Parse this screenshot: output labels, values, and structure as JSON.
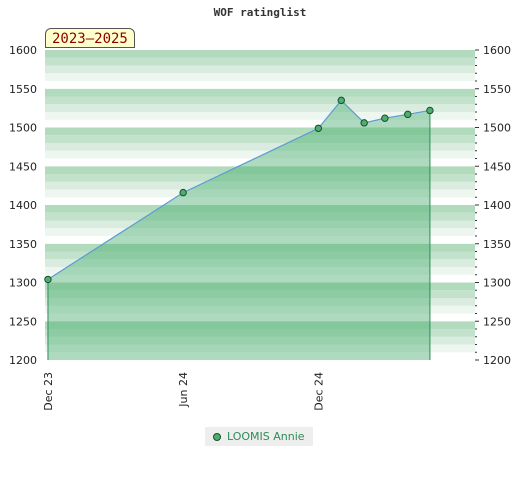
{
  "chart_data": {
    "type": "area",
    "title": "WOF ratinglist",
    "badge": "2023–2025",
    "ylim": [
      1200,
      1600
    ],
    "y_ticks": [
      1200,
      1250,
      1300,
      1350,
      1400,
      1450,
      1500,
      1550,
      1600
    ],
    "x_range": [
      "2023-11-27",
      "2025-07-01"
    ],
    "x_ticks": [
      {
        "label": "Dec 23",
        "date": "2023-12-01"
      },
      {
        "label": "Jun 24",
        "date": "2024-06-01"
      },
      {
        "label": "Dec 24",
        "date": "2024-12-01"
      }
    ],
    "series": [
      {
        "name": "LOOMIS Annie",
        "color": "#4caf70",
        "points": [
          {
            "x": "2023-12-01",
            "y": 1304
          },
          {
            "x": "2024-06-01",
            "y": 1416
          },
          {
            "x": "2024-12-01",
            "y": 1499
          },
          {
            "x": "2025-01-01",
            "y": 1535
          },
          {
            "x": "2025-02-01",
            "y": 1506
          },
          {
            "x": "2025-03-01",
            "y": 1512
          },
          {
            "x": "2025-04-01",
            "y": 1517
          },
          {
            "x": "2025-05-01",
            "y": 1522
          }
        ]
      }
    ],
    "grid": true,
    "legend_position": "bottom"
  }
}
